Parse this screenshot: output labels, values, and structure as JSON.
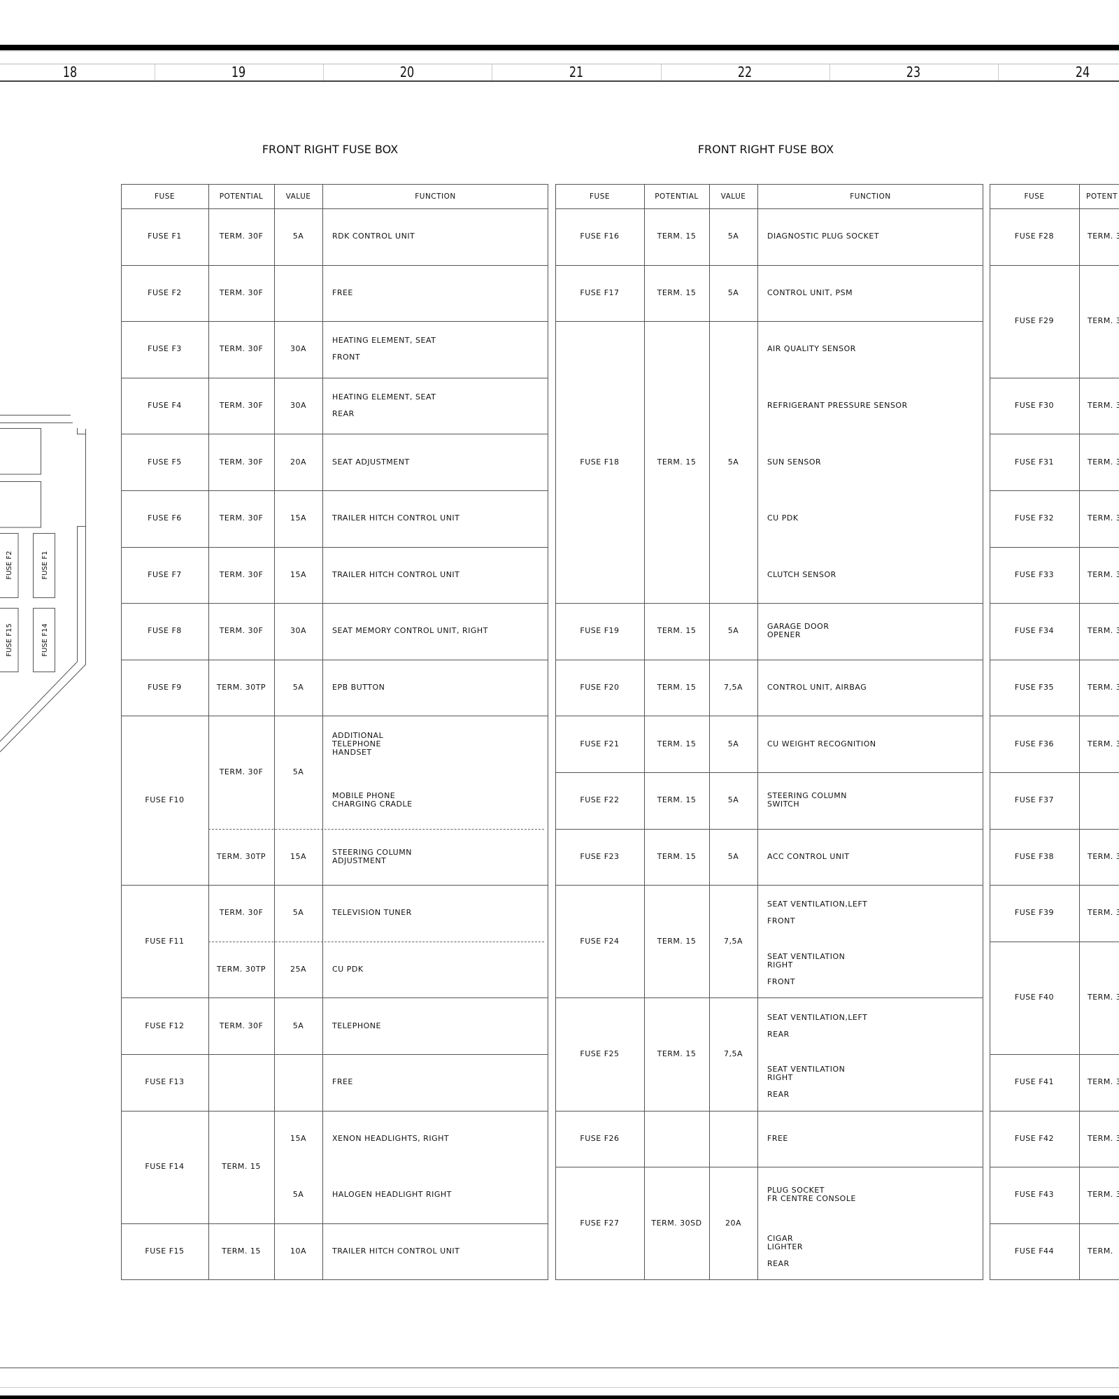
{
  "ruler": [
    "18",
    "19",
    "20",
    "21",
    "22",
    "23",
    "24"
  ],
  "diagram": {
    "labels": [
      "FUSE F2",
      "FUSE F1",
      "FUSE F15",
      "FUSE F14"
    ]
  },
  "tables": [
    {
      "title": "FRONT RIGHT FUSE BOX",
      "headers": [
        "FUSE",
        "POTENTIAL",
        "VALUE",
        "FUNCTION"
      ],
      "rows": [
        {
          "fuse": "FUSE F1",
          "span": 1,
          "parts": [
            {
              "potential": "TERM. 30F",
              "value": "5A",
              "functions": [
                "RDK CONTROL UNIT"
              ]
            }
          ]
        },
        {
          "fuse": "FUSE F2",
          "span": 1,
          "parts": [
            {
              "potential": "TERM. 30F",
              "value": "",
              "functions": [
                "FREE"
              ]
            }
          ]
        },
        {
          "fuse": "FUSE F3",
          "span": 1,
          "parts": [
            {
              "potential": "TERM. 30F",
              "value": "30A",
              "functions": [
                "HEATING ELEMENT, SEAT\n\nFRONT"
              ]
            }
          ]
        },
        {
          "fuse": "FUSE F4",
          "span": 1,
          "parts": [
            {
              "potential": "TERM. 30F",
              "value": "30A",
              "functions": [
                "HEATING ELEMENT, SEAT\n\nREAR"
              ]
            }
          ]
        },
        {
          "fuse": "FUSE F5",
          "span": 1,
          "parts": [
            {
              "potential": "TERM. 30F",
              "value": "20A",
              "functions": [
                "SEAT ADJUSTMENT"
              ]
            }
          ]
        },
        {
          "fuse": "FUSE F6",
          "span": 1,
          "parts": [
            {
              "potential": "TERM. 30F",
              "value": "15A",
              "functions": [
                "TRAILER HITCH CONTROL UNIT"
              ]
            }
          ]
        },
        {
          "fuse": "FUSE F7",
          "span": 1,
          "parts": [
            {
              "potential": "TERM. 30F",
              "value": "15A",
              "functions": [
                "TRAILER HITCH CONTROL UNIT"
              ]
            }
          ]
        },
        {
          "fuse": "FUSE F8",
          "span": 1,
          "parts": [
            {
              "potential": "TERM. 30F",
              "value": "30A",
              "functions": [
                "SEAT MEMORY CONTROL UNIT, RIGHT"
              ]
            }
          ]
        },
        {
          "fuse": "FUSE F9",
          "span": 1,
          "parts": [
            {
              "potential": "TERM. 30TP",
              "value": "5A",
              "functions": [
                "EPB BUTTON"
              ]
            }
          ]
        },
        {
          "fuse": "FUSE F10",
          "span": 3,
          "parts": [
            {
              "potential": "TERM. 30F",
              "value": "5A",
              "span": 2,
              "functions": [
                "ADDITIONAL\nTELEPHONE\nHANDSET",
                "MOBILE PHONE\nCHARGING CRADLE"
              ]
            },
            {
              "potential": "TERM. 30TP",
              "value": "15A",
              "span": 1,
              "functions": [
                "STEERING COLUMN\nADJUSTMENT"
              ]
            }
          ]
        },
        {
          "fuse": "FUSE F11",
          "span": 2,
          "parts": [
            {
              "potential": "TERM. 30F",
              "value": "5A",
              "span": 1,
              "functions": [
                "TELEVISION TUNER"
              ]
            },
            {
              "potential": "TERM. 30TP",
              "value": "25A",
              "span": 1,
              "functions": [
                "CU PDK"
              ]
            }
          ]
        },
        {
          "fuse": "FUSE F12",
          "span": 1,
          "parts": [
            {
              "potential": "TERM. 30F",
              "value": "5A",
              "functions": [
                "TELEPHONE"
              ]
            }
          ]
        },
        {
          "fuse": "FUSE F13",
          "span": 1,
          "parts": [
            {
              "potential": "",
              "value": "",
              "functions": [
                "FREE"
              ]
            }
          ]
        },
        {
          "fuse": "FUSE F14",
          "span": 2,
          "parts": [
            {
              "potential": "TERM. 15",
              "values": [
                "15A",
                "5A"
              ],
              "functions": [
                "XENON HEADLIGHTS, RIGHT",
                "HALOGEN HEADLIGHT RIGHT"
              ]
            }
          ]
        },
        {
          "fuse": "FUSE F15",
          "span": 1,
          "parts": [
            {
              "potential": "TERM. 15",
              "value": "10A",
              "functions": [
                "TRAILER HITCH CONTROL UNIT"
              ]
            }
          ]
        }
      ]
    },
    {
      "title": "FRONT RIGHT FUSE BOX",
      "headers": [
        "FUSE",
        "POTENTIAL",
        "VALUE",
        "FUNCTION"
      ],
      "rows": [
        {
          "fuse": "FUSE F16",
          "span": 1,
          "parts": [
            {
              "potential": "TERM. 15",
              "value": "5A",
              "functions": [
                "DIAGNOSTIC PLUG SOCKET"
              ]
            }
          ]
        },
        {
          "fuse": "FUSE F17",
          "span": 1,
          "parts": [
            {
              "potential": "TERM. 15",
              "value": "5A",
              "functions": [
                "CONTROL UNIT, PSM"
              ]
            }
          ]
        },
        {
          "fuse": "FUSE F18",
          "span": 5,
          "parts": [
            {
              "potential": "TERM. 15",
              "value": "5A",
              "functions": [
                "AIR QUALITY SENSOR",
                "REFRIGERANT PRESSURE SENSOR",
                "SUN SENSOR",
                "CU PDK",
                "CLUTCH SENSOR"
              ]
            }
          ]
        },
        {
          "fuse": "FUSE F19",
          "span": 1,
          "parts": [
            {
              "potential": "TERM. 15",
              "value": "5A",
              "functions": [
                "GARAGE DOOR\nOPENER"
              ]
            }
          ]
        },
        {
          "fuse": "FUSE F20",
          "span": 1,
          "parts": [
            {
              "potential": "TERM. 15",
              "value": "7,5A",
              "functions": [
                "CONTROL UNIT, AIRBAG"
              ]
            }
          ]
        },
        {
          "fuse": "FUSE F21",
          "span": 1,
          "parts": [
            {
              "potential": "TERM. 15",
              "value": "5A",
              "functions": [
                "CU WEIGHT RECOGNITION"
              ]
            }
          ]
        },
        {
          "fuse": "FUSE F22",
          "span": 1,
          "parts": [
            {
              "potential": "TERM. 15",
              "value": "5A",
              "functions": [
                "STEERING COLUMN\nSWITCH"
              ]
            }
          ]
        },
        {
          "fuse": "FUSE F23",
          "span": 1,
          "parts": [
            {
              "potential": "TERM. 15",
              "value": "5A",
              "functions": [
                "ACC CONTROL UNIT"
              ]
            }
          ]
        },
        {
          "fuse": "FUSE F24",
          "span": 2,
          "parts": [
            {
              "potential": "TERM. 15",
              "value": "7,5A",
              "functions": [
                "SEAT VENTILATION,LEFT\n\nFRONT",
                "SEAT VENTILATION\nRIGHT\n\nFRONT"
              ]
            }
          ]
        },
        {
          "fuse": "FUSE F25",
          "span": 2,
          "parts": [
            {
              "potential": "TERM. 15",
              "value": "7,5A",
              "functions": [
                "SEAT VENTILATION,LEFT\n\nREAR",
                "SEAT VENTILATION\nRIGHT\n\nREAR"
              ]
            }
          ]
        },
        {
          "fuse": "FUSE F26",
          "span": 1,
          "parts": [
            {
              "potential": "",
              "value": "",
              "functions": [
                "FREE"
              ]
            }
          ]
        },
        {
          "fuse": "FUSE F27",
          "span": 2,
          "parts": [
            {
              "potential": "TERM. 30SD",
              "value": "20A",
              "functions": [
                "PLUG SOCKET\nFR CENTRE CONSOLE",
                "CIGAR\nLIGHTER\n\nREAR"
              ]
            }
          ]
        }
      ]
    },
    {
      "title": "",
      "headers": [
        "FUSE",
        "POTENT"
      ],
      "rows": [
        {
          "fuse": "FUSE F28",
          "span": 1,
          "parts": [
            {
              "potential": "TERM. 3"
            }
          ]
        },
        {
          "fuse": "FUSE F29",
          "span": 2,
          "parts": [
            {
              "potential": "TERM. 30"
            }
          ]
        },
        {
          "fuse": "FUSE F30",
          "span": 1,
          "parts": [
            {
              "potential": "TERM. 3"
            }
          ]
        },
        {
          "fuse": "FUSE F31",
          "span": 1,
          "parts": [
            {
              "potential": "TERM. 30"
            }
          ]
        },
        {
          "fuse": "FUSE F32",
          "span": 1,
          "parts": [
            {
              "potential": "TERM. 3"
            }
          ]
        },
        {
          "fuse": "FUSE F33",
          "span": 1,
          "parts": [
            {
              "potential": "TERM. 3"
            }
          ]
        },
        {
          "fuse": "FUSE F34",
          "span": 1,
          "parts": [
            {
              "potential": "TERM. 3"
            }
          ]
        },
        {
          "fuse": "FUSE F35",
          "span": 1,
          "parts": [
            {
              "potential": "TERM. 3"
            }
          ]
        },
        {
          "fuse": "FUSE F36",
          "span": 1,
          "parts": [
            {
              "potential": "TERM. 30"
            }
          ]
        },
        {
          "fuse": "FUSE F37",
          "span": 1,
          "parts": [
            {
              "potential": ""
            }
          ]
        },
        {
          "fuse": "FUSE F38",
          "span": 1,
          "parts": [
            {
              "potential": "TERM. 30"
            }
          ]
        },
        {
          "fuse": "FUSE F39",
          "span": 1,
          "parts": [
            {
              "potential": "TERM. 30"
            }
          ]
        },
        {
          "fuse": "FUSE F40",
          "span": 2,
          "parts": [
            {
              "potential": "TERM. 3"
            }
          ]
        },
        {
          "fuse": "FUSE F41",
          "span": 1,
          "parts": [
            {
              "potential": "TERM. 3"
            }
          ]
        },
        {
          "fuse": "FUSE F42",
          "span": 1,
          "parts": [
            {
              "potential": "TERM. 30"
            }
          ]
        },
        {
          "fuse": "FUSE F43",
          "span": 1,
          "parts": [
            {
              "potential": "TERM. 3"
            }
          ]
        },
        {
          "fuse": "FUSE F44",
          "span": 1,
          "parts": [
            {
              "potential": "TERM."
            }
          ]
        }
      ]
    }
  ]
}
